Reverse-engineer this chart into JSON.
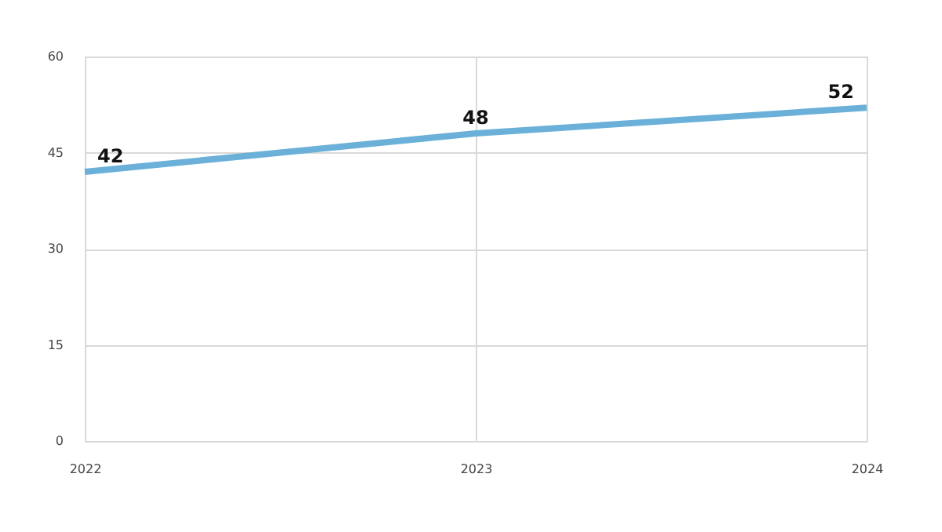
{
  "chart_data": {
    "type": "line",
    "x": [
      2022,
      2023,
      2024
    ],
    "series": [
      {
        "color": "#6ab0d8",
        "values": [
          42,
          48,
          52
        ]
      }
    ],
    "xlim": [
      2022,
      2024
    ],
    "xticks": [
      2022,
      2023,
      2024
    ],
    "ylim": [
      0,
      60
    ],
    "yticks": [
      0,
      15,
      30,
      45,
      60
    ],
    "grid": true,
    "data_labels": true,
    "marker": "none",
    "line_style": "solid"
  }
}
